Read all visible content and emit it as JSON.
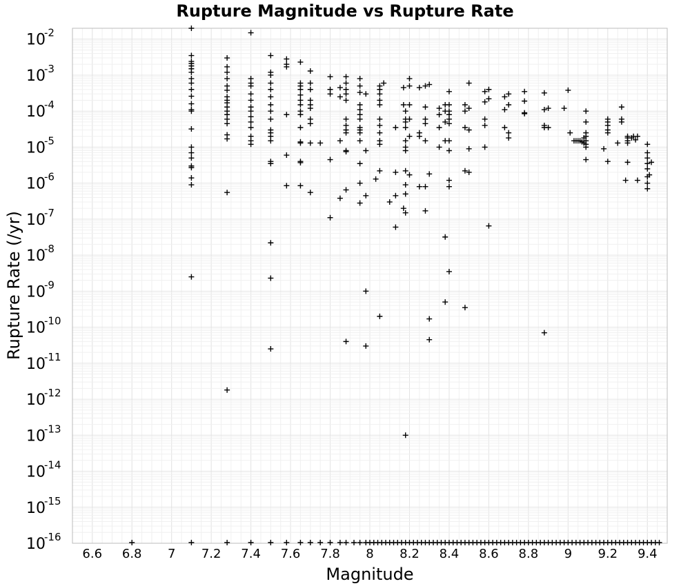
{
  "chart_data": {
    "type": "scatter",
    "title": "Rupture Magnitude vs Rupture Rate",
    "xlabel": "Magnitude",
    "ylabel": "Rupture Rate (/yr)",
    "xlim": [
      6.5,
      9.5
    ],
    "ylim": [
      1e-16,
      0.02
    ],
    "yscale": "log",
    "grid": true,
    "marker": "+",
    "xticks": [
      6.6,
      6.8,
      7,
      7.2,
      7.4,
      7.6,
      7.8,
      8,
      8.2,
      8.4,
      8.6,
      8.8,
      9,
      9.2,
      9.4
    ],
    "xtick_labels": [
      "6.6",
      "6.8",
      "7",
      "7.2",
      "7.4",
      "7.6",
      "7.8",
      "8",
      "8.2",
      "8.4",
      "8.6",
      "8.8",
      "9",
      "9.2",
      "9.4"
    ],
    "yticks": [
      {
        "base": "10",
        "exp": "-2"
      },
      {
        "base": "10",
        "exp": "-3"
      },
      {
        "base": "10",
        "exp": "-4"
      },
      {
        "base": "10",
        "exp": "-5"
      },
      {
        "base": "10",
        "exp": "-6"
      },
      {
        "base": "10",
        "exp": "-7"
      },
      {
        "base": "10",
        "exp": "-8"
      },
      {
        "base": "10",
        "exp": "-9"
      },
      {
        "base": "10",
        "exp": "-10"
      },
      {
        "base": "10",
        "exp": "-11"
      },
      {
        "base": "10",
        "exp": "-12"
      },
      {
        "base": "10",
        "exp": "-13"
      },
      {
        "base": "10",
        "exp": "-14"
      },
      {
        "base": "10",
        "exp": "-15"
      },
      {
        "base": "10",
        "exp": "-16"
      }
    ],
    "points": [
      [
        7.1,
        0.02
      ],
      [
        7.1,
        0.0035
      ],
      [
        7.1,
        0.0024
      ],
      [
        7.1,
        0.0021
      ],
      [
        7.1,
        0.0018
      ],
      [
        7.1,
        0.0015
      ],
      [
        7.1,
        0.0012
      ],
      [
        7.1,
        0.0008
      ],
      [
        7.1,
        0.0006
      ],
      [
        7.1,
        0.0004
      ],
      [
        7.1,
        0.00026
      ],
      [
        7.1,
        0.00016
      ],
      [
        7.1,
        0.00011
      ],
      [
        7.1,
        0.0001
      ],
      [
        7.1,
        3.2e-05
      ],
      [
        7.1,
        1e-05
      ],
      [
        7.1,
        7e-06
      ],
      [
        7.1,
        5e-06
      ],
      [
        7.1,
        3e-06
      ],
      [
        7.1,
        2.7e-06
      ],
      [
        7.1,
        1.4e-06
      ],
      [
        7.1,
        9e-07
      ],
      [
        7.1,
        2.5e-09
      ],
      [
        7.28,
        0.003
      ],
      [
        7.28,
        0.0017
      ],
      [
        7.28,
        0.0012
      ],
      [
        7.28,
        0.0008
      ],
      [
        7.28,
        0.0005
      ],
      [
        7.28,
        0.00038
      ],
      [
        7.28,
        0.00025
      ],
      [
        7.28,
        0.0002
      ],
      [
        7.28,
        0.00017
      ],
      [
        7.28,
        0.00013
      ],
      [
        7.28,
        0.0001
      ],
      [
        7.28,
        8e-05
      ],
      [
        7.28,
        6e-05
      ],
      [
        7.28,
        4.5e-05
      ],
      [
        7.28,
        2.2e-05
      ],
      [
        7.28,
        1.7e-05
      ],
      [
        7.28,
        5.5e-07
      ],
      [
        7.28,
        1.8e-12
      ],
      [
        7.4,
        0.015
      ],
      [
        7.4,
        0.0008
      ],
      [
        7.4,
        0.0006
      ],
      [
        7.4,
        0.0005
      ],
      [
        7.4,
        0.0003
      ],
      [
        7.4,
        0.0002
      ],
      [
        7.4,
        0.00013
      ],
      [
        7.4,
        0.0001
      ],
      [
        7.4,
        7e-05
      ],
      [
        7.4,
        5e-05
      ],
      [
        7.4,
        3.5e-05
      ],
      [
        7.4,
        2e-05
      ],
      [
        7.4,
        1.5e-05
      ],
      [
        7.4,
        1.2e-05
      ],
      [
        7.5,
        0.0035
      ],
      [
        7.5,
        0.0012
      ],
      [
        7.5,
        0.001
      ],
      [
        7.5,
        0.0006
      ],
      [
        7.5,
        0.0004
      ],
      [
        7.5,
        0.00025
      ],
      [
        7.5,
        0.00015
      ],
      [
        7.5,
        0.0001
      ],
      [
        7.5,
        6e-05
      ],
      [
        7.5,
        3e-05
      ],
      [
        7.5,
        2.5e-05
      ],
      [
        7.5,
        2e-05
      ],
      [
        7.5,
        1.5e-05
      ],
      [
        7.5,
        4e-06
      ],
      [
        7.5,
        3.5e-06
      ],
      [
        7.5,
        2.2e-08
      ],
      [
        7.5,
        2.3e-09
      ],
      [
        7.5,
        2.5e-11
      ],
      [
        7.58,
        0.0028
      ],
      [
        7.58,
        0.002
      ],
      [
        7.58,
        0.0017
      ],
      [
        7.58,
        8e-05
      ],
      [
        7.58,
        6e-06
      ],
      [
        7.58,
        8.5e-07
      ],
      [
        7.65,
        0.0023
      ],
      [
        7.65,
        0.0006
      ],
      [
        7.65,
        0.0005
      ],
      [
        7.65,
        0.0004
      ],
      [
        7.65,
        0.00028
      ],
      [
        7.65,
        0.0002
      ],
      [
        7.65,
        0.00015
      ],
      [
        7.65,
        0.0001
      ],
      [
        7.65,
        8e-05
      ],
      [
        7.65,
        3.5e-05
      ],
      [
        7.65,
        1.4e-05
      ],
      [
        7.65,
        1.3e-05
      ],
      [
        7.65,
        4e-06
      ],
      [
        7.65,
        3.7e-06
      ],
      [
        7.65,
        8.5e-07
      ],
      [
        7.7,
        0.0013
      ],
      [
        7.7,
        0.0006
      ],
      [
        7.7,
        0.0004
      ],
      [
        7.7,
        0.0002
      ],
      [
        7.7,
        0.00015
      ],
      [
        7.7,
        0.00012
      ],
      [
        7.7,
        6e-05
      ],
      [
        7.7,
        4.5e-05
      ],
      [
        7.7,
        1.3e-05
      ],
      [
        7.7,
        5.5e-07
      ],
      [
        7.75,
        1.3e-05
      ],
      [
        7.8,
        0.0009
      ],
      [
        7.8,
        0.0004
      ],
      [
        7.8,
        0.0003
      ],
      [
        7.8,
        4.5e-06
      ],
      [
        7.8,
        1.1e-07
      ],
      [
        7.85,
        0.00045
      ],
      [
        7.85,
        0.00025
      ],
      [
        7.85,
        1.5e-05
      ],
      [
        7.85,
        3.8e-07
      ],
      [
        7.88,
        0.0009
      ],
      [
        7.88,
        0.0006
      ],
      [
        7.88,
        0.0004
      ],
      [
        7.88,
        0.0003
      ],
      [
        7.88,
        0.0002
      ],
      [
        7.88,
        6e-05
      ],
      [
        7.88,
        4e-05
      ],
      [
        7.88,
        3e-05
      ],
      [
        7.88,
        2.5e-05
      ],
      [
        7.88,
        8e-06
      ],
      [
        7.88,
        7.5e-06
      ],
      [
        7.88,
        6.5e-07
      ],
      [
        7.88,
        4e-11
      ],
      [
        7.95,
        0.0008
      ],
      [
        7.95,
        0.0005
      ],
      [
        7.95,
        0.00033
      ],
      [
        7.95,
        0.00015
      ],
      [
        7.95,
        0.00011
      ],
      [
        7.95,
        8e-05
      ],
      [
        7.95,
        6e-05
      ],
      [
        7.95,
        3.5e-05
      ],
      [
        7.95,
        3e-05
      ],
      [
        7.95,
        2.5e-05
      ],
      [
        7.95,
        1.5e-05
      ],
      [
        7.95,
        3.5e-06
      ],
      [
        7.95,
        1e-06
      ],
      [
        7.95,
        2.8e-07
      ],
      [
        7.98,
        0.0003
      ],
      [
        7.98,
        8e-06
      ],
      [
        7.98,
        4.5e-07
      ],
      [
        7.98,
        1e-09
      ],
      [
        7.98,
        3e-11
      ],
      [
        8.05,
        0.0005
      ],
      [
        8.05,
        0.0004
      ],
      [
        8.05,
        0.0003
      ],
      [
        8.05,
        0.0002
      ],
      [
        8.05,
        0.00015
      ],
      [
        8.05,
        6e-05
      ],
      [
        8.05,
        4e-05
      ],
      [
        8.05,
        2.5e-05
      ],
      [
        8.05,
        1.5e-05
      ],
      [
        8.05,
        1.2e-05
      ],
      [
        8.05,
        2.2e-06
      ],
      [
        8.05,
        2e-10
      ],
      [
        8.07,
        0.0006
      ],
      [
        8.03,
        1.3e-06
      ],
      [
        8.1,
        3e-07
      ],
      [
        8.13,
        3.5e-05
      ],
      [
        8.13,
        2e-06
      ],
      [
        8.13,
        4.5e-07
      ],
      [
        8.13,
        6e-08
      ],
      [
        8.17,
        0.00045
      ],
      [
        8.17,
        0.00015
      ],
      [
        8.17,
        2e-07
      ],
      [
        8.18,
        0.0001
      ],
      [
        8.18,
        6e-05
      ],
      [
        8.18,
        5e-05
      ],
      [
        8.18,
        3.5e-05
      ],
      [
        8.18,
        1.5e-05
      ],
      [
        8.18,
        1e-05
      ],
      [
        8.18,
        8e-06
      ],
      [
        8.18,
        2.2e-06
      ],
      [
        8.18,
        9e-07
      ],
      [
        8.18,
        5e-07
      ],
      [
        8.18,
        1.5e-07
      ],
      [
        8.18,
        1e-13
      ],
      [
        8.2,
        0.0008
      ],
      [
        8.2,
        0.0005
      ],
      [
        8.2,
        0.00015
      ],
      [
        8.2,
        6e-05
      ],
      [
        8.2,
        2e-05
      ],
      [
        8.2,
        1.7e-06
      ],
      [
        8.25,
        0.00045
      ],
      [
        8.25,
        2.5e-05
      ],
      [
        8.25,
        2e-05
      ],
      [
        8.25,
        8e-07
      ],
      [
        8.28,
        0.0005
      ],
      [
        8.28,
        0.00013
      ],
      [
        8.28,
        6e-05
      ],
      [
        8.28,
        4.5e-05
      ],
      [
        8.28,
        1.5e-05
      ],
      [
        8.28,
        8e-07
      ],
      [
        8.28,
        1.7e-07
      ],
      [
        8.3,
        0.00055
      ],
      [
        8.3,
        1.8e-06
      ],
      [
        8.3,
        1.7e-10
      ],
      [
        8.3,
        4.5e-11
      ],
      [
        8.35,
        0.00012
      ],
      [
        8.35,
        8e-05
      ],
      [
        8.35,
        3.5e-05
      ],
      [
        8.35,
        1e-05
      ],
      [
        8.38,
        0.00015
      ],
      [
        8.38,
        0.0001
      ],
      [
        8.38,
        5e-05
      ],
      [
        8.38,
        1.5e-05
      ],
      [
        8.38,
        3.2e-08
      ],
      [
        8.38,
        5e-10
      ],
      [
        8.4,
        0.00035
      ],
      [
        8.4,
        0.00015
      ],
      [
        8.4,
        0.0001
      ],
      [
        8.4,
        8e-05
      ],
      [
        8.4,
        6e-05
      ],
      [
        8.4,
        4.5e-05
      ],
      [
        8.4,
        1.5e-05
      ],
      [
        8.4,
        8e-06
      ],
      [
        8.4,
        1.2e-06
      ],
      [
        8.4,
        8e-07
      ],
      [
        8.4,
        3.5e-09
      ],
      [
        8.48,
        0.00015
      ],
      [
        8.48,
        0.0001
      ],
      [
        8.48,
        3.5e-05
      ],
      [
        8.48,
        2.2e-06
      ],
      [
        8.48,
        3.5e-10
      ],
      [
        8.5,
        0.0006
      ],
      [
        8.5,
        0.00012
      ],
      [
        8.5,
        3e-05
      ],
      [
        8.5,
        9e-06
      ],
      [
        8.5,
        2e-06
      ],
      [
        8.58,
        0.00035
      ],
      [
        8.58,
        0.00018
      ],
      [
        8.58,
        6e-05
      ],
      [
        8.58,
        4e-05
      ],
      [
        8.58,
        1e-05
      ],
      [
        8.6,
        0.0004
      ],
      [
        8.6,
        0.00022
      ],
      [
        8.6,
        6.5e-08
      ],
      [
        8.68,
        0.00025
      ],
      [
        8.68,
        0.00011
      ],
      [
        8.68,
        3.5e-05
      ],
      [
        8.7,
        0.0003
      ],
      [
        8.7,
        0.00015
      ],
      [
        8.7,
        2.5e-05
      ],
      [
        8.7,
        1.8e-05
      ],
      [
        8.78,
        0.00035
      ],
      [
        8.78,
        0.00019
      ],
      [
        8.78,
        9e-05
      ],
      [
        8.78,
        8.5e-05
      ],
      [
        8.88,
        0.00032
      ],
      [
        8.88,
        0.00011
      ],
      [
        8.88,
        4e-05
      ],
      [
        8.88,
        3.5e-05
      ],
      [
        8.88,
        7e-11
      ],
      [
        8.9,
        0.00012
      ],
      [
        8.9,
        3.5e-05
      ],
      [
        8.98,
        0.00012
      ],
      [
        9.0,
        0.00038
      ],
      [
        9.01,
        2.5e-05
      ],
      [
        9.03,
        1.5e-05
      ],
      [
        9.04,
        1.5e-05
      ],
      [
        9.05,
        1.5e-05
      ],
      [
        9.06,
        1.5e-05
      ],
      [
        9.07,
        1.4e-05
      ],
      [
        9.08,
        1.3e-05
      ],
      [
        9.08,
        1.8e-05
      ],
      [
        9.09,
        0.0001
      ],
      [
        9.09,
        5e-05
      ],
      [
        9.09,
        2.5e-05
      ],
      [
        9.09,
        2e-05
      ],
      [
        9.09,
        1.5e-05
      ],
      [
        9.09,
        1.2e-05
      ],
      [
        9.09,
        1e-05
      ],
      [
        9.09,
        4.5e-06
      ],
      [
        9.18,
        9e-06
      ],
      [
        9.2,
        6e-05
      ],
      [
        9.2,
        5e-05
      ],
      [
        9.2,
        4e-05
      ],
      [
        9.2,
        3e-05
      ],
      [
        9.2,
        2.5e-05
      ],
      [
        9.2,
        4e-06
      ],
      [
        9.25,
        1.3e-05
      ],
      [
        9.27,
        0.00013
      ],
      [
        9.27,
        6e-05
      ],
      [
        9.27,
        5e-05
      ],
      [
        9.29,
        1.2e-06
      ],
      [
        9.3,
        2e-05
      ],
      [
        9.3,
        1.8e-05
      ],
      [
        9.3,
        1.5e-05
      ],
      [
        9.3,
        1.3e-05
      ],
      [
        9.3,
        3.8e-06
      ],
      [
        9.32,
        1.8e-05
      ],
      [
        9.33,
        2e-05
      ],
      [
        9.34,
        1.6e-05
      ],
      [
        9.35,
        2e-05
      ],
      [
        9.35,
        1.2e-06
      ],
      [
        9.4,
        1.2e-05
      ],
      [
        9.4,
        7e-06
      ],
      [
        9.4,
        5e-06
      ],
      [
        9.4,
        3.5e-06
      ],
      [
        9.4,
        2.5e-06
      ],
      [
        9.4,
        1.5e-06
      ],
      [
        9.4,
        1e-06
      ],
      [
        9.4,
        7e-07
      ],
      [
        9.41,
        1.7e-06
      ],
      [
        9.42,
        3.8e-06
      ]
    ],
    "floor_points": [
      6.8,
      7.1,
      7.28,
      7.4,
      7.5,
      7.58,
      7.65,
      7.7,
      7.75,
      7.8,
      7.85,
      7.88,
      7.92,
      7.95,
      7.98,
      8.0,
      8.02,
      8.04,
      8.06,
      8.08,
      8.1,
      8.12,
      8.14,
      8.16,
      8.18,
      8.2,
      8.22,
      8.24,
      8.26,
      8.28,
      8.3,
      8.32,
      8.34,
      8.36,
      8.38,
      8.4,
      8.42,
      8.44,
      8.46,
      8.48,
      8.5,
      8.52,
      8.54,
      8.56,
      8.58,
      8.6,
      8.62,
      8.64,
      8.66,
      8.68,
      8.7,
      8.72,
      8.74,
      8.76,
      8.78,
      8.8,
      8.82,
      8.84,
      8.86,
      8.88,
      8.9,
      8.92,
      8.94,
      8.96,
      8.98,
      9.0,
      9.02,
      9.04,
      9.06,
      9.08,
      9.1,
      9.12,
      9.14,
      9.16,
      9.18,
      9.2,
      9.22,
      9.24,
      9.26,
      9.28,
      9.3,
      9.32,
      9.34,
      9.36,
      9.38,
      9.4,
      9.42,
      9.44,
      9.46
    ]
  }
}
